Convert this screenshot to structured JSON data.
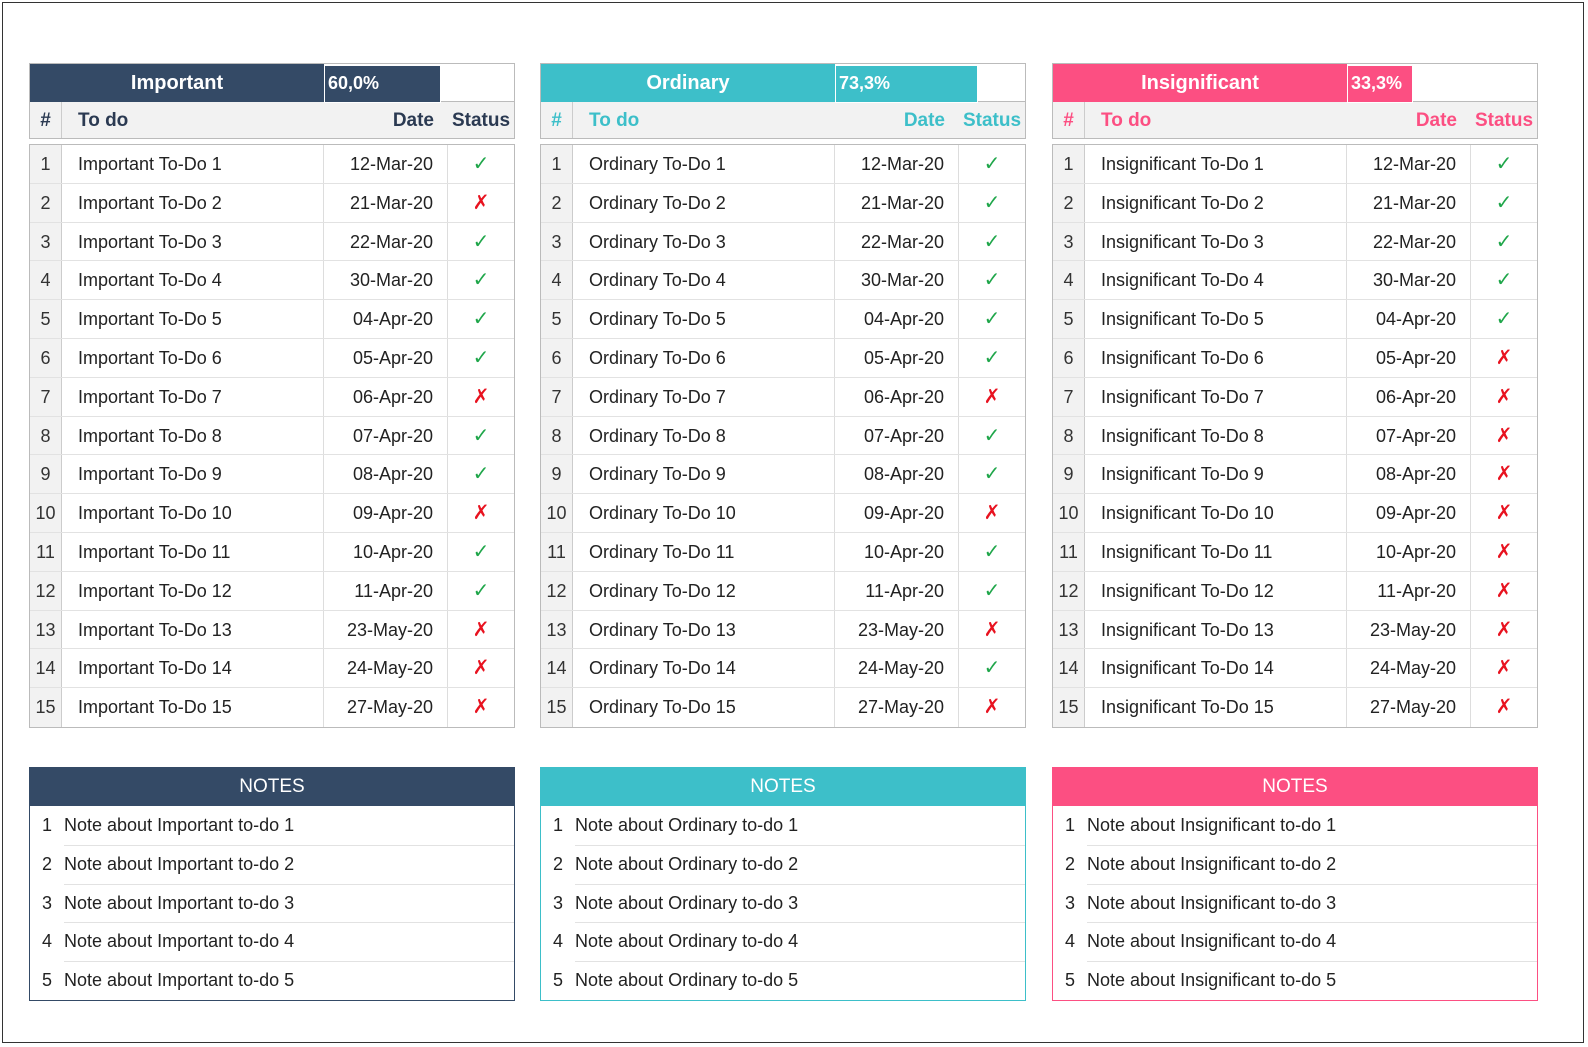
{
  "columns": {
    "num": "#",
    "todo": "To do",
    "date": "Date",
    "status": "Status"
  },
  "panels": [
    {
      "title": "Important",
      "percent": "60,0%",
      "percent_value": 0.6,
      "color": "#344a66",
      "header_text_color": "#2b3a52",
      "rows": [
        {
          "n": "1",
          "todo": "Important To-Do 1",
          "date": "12-Mar-20",
          "ok": true
        },
        {
          "n": "2",
          "todo": "Important To-Do 2",
          "date": "21-Mar-20",
          "ok": false
        },
        {
          "n": "3",
          "todo": "Important To-Do 3",
          "date": "22-Mar-20",
          "ok": true
        },
        {
          "n": "4",
          "todo": "Important To-Do 4",
          "date": "30-Mar-20",
          "ok": true
        },
        {
          "n": "5",
          "todo": "Important To-Do 5",
          "date": "04-Apr-20",
          "ok": true
        },
        {
          "n": "6",
          "todo": "Important To-Do 6",
          "date": "05-Apr-20",
          "ok": true
        },
        {
          "n": "7",
          "todo": "Important To-Do 7",
          "date": "06-Apr-20",
          "ok": false
        },
        {
          "n": "8",
          "todo": "Important To-Do 8",
          "date": "07-Apr-20",
          "ok": true
        },
        {
          "n": "9",
          "todo": "Important To-Do 9",
          "date": "08-Apr-20",
          "ok": true
        },
        {
          "n": "10",
          "todo": "Important To-Do 10",
          "date": "09-Apr-20",
          "ok": false
        },
        {
          "n": "11",
          "todo": "Important To-Do 11",
          "date": "10-Apr-20",
          "ok": true
        },
        {
          "n": "12",
          "todo": "Important To-Do 12",
          "date": "11-Apr-20",
          "ok": true
        },
        {
          "n": "13",
          "todo": "Important To-Do 13",
          "date": "23-May-20",
          "ok": false
        },
        {
          "n": "14",
          "todo": "Important To-Do 14",
          "date": "24-May-20",
          "ok": false
        },
        {
          "n": "15",
          "todo": "Important To-Do 15",
          "date": "27-May-20",
          "ok": false
        }
      ],
      "notes_title": "NOTES",
      "notes": [
        {
          "n": "1",
          "text": "Note about Important to-do 1"
        },
        {
          "n": "2",
          "text": "Note about Important to-do 2"
        },
        {
          "n": "3",
          "text": "Note about Important to-do 3"
        },
        {
          "n": "4",
          "text": "Note about Important to-do 4"
        },
        {
          "n": "5",
          "text": "Note about Important to-do 5"
        }
      ]
    },
    {
      "title": "Ordinary",
      "percent": "73,3%",
      "percent_value": 0.733,
      "color": "#3dbfc9",
      "header_text_color": "#3dbfc9",
      "rows": [
        {
          "n": "1",
          "todo": "Ordinary To-Do 1",
          "date": "12-Mar-20",
          "ok": true
        },
        {
          "n": "2",
          "todo": "Ordinary To-Do 2",
          "date": "21-Mar-20",
          "ok": true
        },
        {
          "n": "3",
          "todo": "Ordinary To-Do 3",
          "date": "22-Mar-20",
          "ok": true
        },
        {
          "n": "4",
          "todo": "Ordinary To-Do 4",
          "date": "30-Mar-20",
          "ok": true
        },
        {
          "n": "5",
          "todo": "Ordinary To-Do 5",
          "date": "04-Apr-20",
          "ok": true
        },
        {
          "n": "6",
          "todo": "Ordinary To-Do 6",
          "date": "05-Apr-20",
          "ok": true
        },
        {
          "n": "7",
          "todo": "Ordinary To-Do 7",
          "date": "06-Apr-20",
          "ok": false
        },
        {
          "n": "8",
          "todo": "Ordinary To-Do 8",
          "date": "07-Apr-20",
          "ok": true
        },
        {
          "n": "9",
          "todo": "Ordinary To-Do 9",
          "date": "08-Apr-20",
          "ok": true
        },
        {
          "n": "10",
          "todo": "Ordinary To-Do 10",
          "date": "09-Apr-20",
          "ok": false
        },
        {
          "n": "11",
          "todo": "Ordinary To-Do 11",
          "date": "10-Apr-20",
          "ok": true
        },
        {
          "n": "12",
          "todo": "Ordinary To-Do 12",
          "date": "11-Apr-20",
          "ok": true
        },
        {
          "n": "13",
          "todo": "Ordinary To-Do 13",
          "date": "23-May-20",
          "ok": false
        },
        {
          "n": "14",
          "todo": "Ordinary To-Do 14",
          "date": "24-May-20",
          "ok": true
        },
        {
          "n": "15",
          "todo": "Ordinary To-Do 15",
          "date": "27-May-20",
          "ok": false
        }
      ],
      "notes_title": "NOTES",
      "notes": [
        {
          "n": "1",
          "text": "Note about Ordinary to-do 1"
        },
        {
          "n": "2",
          "text": "Note about Ordinary to-do 2"
        },
        {
          "n": "3",
          "text": "Note about Ordinary to-do 3"
        },
        {
          "n": "4",
          "text": "Note about Ordinary to-do 4"
        },
        {
          "n": "5",
          "text": "Note about Ordinary to-do 5"
        }
      ]
    },
    {
      "title": "Insignificant",
      "percent": "33,3%",
      "percent_value": 0.333,
      "color": "#fc4f82",
      "header_text_color": "#fc4f82",
      "rows": [
        {
          "n": "1",
          "todo": "Insignificant To-Do 1",
          "date": "12-Mar-20",
          "ok": true
        },
        {
          "n": "2",
          "todo": "Insignificant To-Do 2",
          "date": "21-Mar-20",
          "ok": true
        },
        {
          "n": "3",
          "todo": "Insignificant To-Do 3",
          "date": "22-Mar-20",
          "ok": true
        },
        {
          "n": "4",
          "todo": "Insignificant To-Do 4",
          "date": "30-Mar-20",
          "ok": true
        },
        {
          "n": "5",
          "todo": "Insignificant To-Do 5",
          "date": "04-Apr-20",
          "ok": true
        },
        {
          "n": "6",
          "todo": "Insignificant To-Do 6",
          "date": "05-Apr-20",
          "ok": false
        },
        {
          "n": "7",
          "todo": "Insignificant To-Do 7",
          "date": "06-Apr-20",
          "ok": false
        },
        {
          "n": "8",
          "todo": "Insignificant To-Do 8",
          "date": "07-Apr-20",
          "ok": false
        },
        {
          "n": "9",
          "todo": "Insignificant To-Do 9",
          "date": "08-Apr-20",
          "ok": false
        },
        {
          "n": "10",
          "todo": "Insignificant To-Do 10",
          "date": "09-Apr-20",
          "ok": false
        },
        {
          "n": "11",
          "todo": "Insignificant To-Do 11",
          "date": "10-Apr-20",
          "ok": false
        },
        {
          "n": "12",
          "todo": "Insignificant To-Do 12",
          "date": "11-Apr-20",
          "ok": false
        },
        {
          "n": "13",
          "todo": "Insignificant To-Do 13",
          "date": "23-May-20",
          "ok": false
        },
        {
          "n": "14",
          "todo": "Insignificant To-Do 14",
          "date": "24-May-20",
          "ok": false
        },
        {
          "n": "15",
          "todo": "Insignificant To-Do 15",
          "date": "27-May-20",
          "ok": false
        }
      ],
      "notes_title": "NOTES",
      "notes": [
        {
          "n": "1",
          "text": "Note about Insignificant to-do 1"
        },
        {
          "n": "2",
          "text": "Note about Insignificant to-do 2"
        },
        {
          "n": "3",
          "text": "Note about Insignificant to-do 3"
        },
        {
          "n": "4",
          "text": "Note about Insignificant to-do 4"
        },
        {
          "n": "5",
          "text": "Note about Insignificant to-do 5"
        }
      ]
    }
  ],
  "status_icons": {
    "ok": "✓",
    "no": "✗",
    "ok_name": "check-icon",
    "no_name": "cross-icon",
    "ok_color": "#1fa64a",
    "no_color": "#e8121f"
  }
}
